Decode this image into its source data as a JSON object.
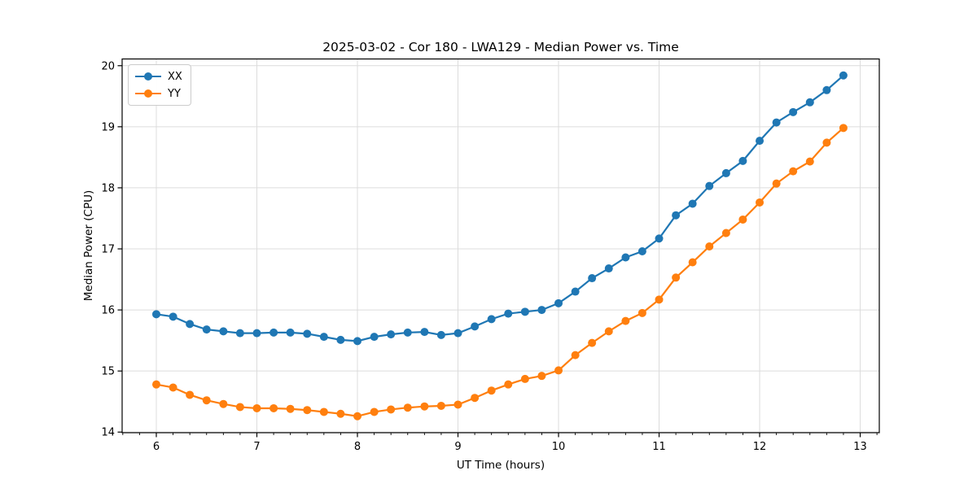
{
  "figure": {
    "title": "2025-03-02 - Cor 180 - LWA129 - Median Power vs. Time"
  },
  "chart_data": {
    "type": "line",
    "title": "2025-03-02 - Cor 180 - LWA129 - Median Power vs. Time",
    "xlabel": "UT Time (hours)",
    "ylabel": "Median Power (CPU)",
    "xlim": [
      5.66,
      13.19
    ],
    "ylim": [
      13.99,
      20.11
    ],
    "xticks": [
      6,
      7,
      8,
      9,
      10,
      11,
      12,
      13
    ],
    "yticks": [
      14,
      15,
      16,
      17,
      18,
      19,
      20
    ],
    "x_minor_subdivisions": 6,
    "grid": true,
    "grid_color": "#dcdcdc",
    "legend_position": "upper-left",
    "x": [
      6.0,
      6.167,
      6.333,
      6.5,
      6.667,
      6.833,
      7.0,
      7.167,
      7.333,
      7.5,
      7.667,
      7.833,
      8.0,
      8.167,
      8.333,
      8.5,
      8.667,
      8.833,
      9.0,
      9.167,
      9.333,
      9.5,
      9.667,
      9.833,
      10.0,
      10.167,
      10.333,
      10.5,
      10.667,
      10.833,
      11.0,
      11.167,
      11.333,
      11.5,
      11.667,
      11.833,
      12.0,
      12.167,
      12.333,
      12.5,
      12.667,
      12.833
    ],
    "series": [
      {
        "name": "XX",
        "color": "#1f77b4",
        "marker": "circle",
        "values": [
          15.93,
          15.89,
          15.77,
          15.68,
          15.65,
          15.62,
          15.62,
          15.63,
          15.63,
          15.61,
          15.56,
          15.51,
          15.49,
          15.56,
          15.6,
          15.63,
          15.64,
          15.59,
          15.62,
          15.73,
          15.85,
          15.94,
          15.97,
          16.0,
          16.11,
          16.3,
          16.52,
          16.68,
          16.86,
          16.96,
          17.17,
          17.55,
          17.74,
          18.03,
          18.24,
          18.44,
          18.77,
          19.07,
          19.24,
          19.4,
          19.6,
          19.84
        ]
      },
      {
        "name": "YY",
        "color": "#ff7f0e",
        "marker": "circle",
        "values": [
          14.78,
          14.73,
          14.61,
          14.52,
          14.46,
          14.41,
          14.39,
          14.39,
          14.38,
          14.36,
          14.33,
          14.3,
          14.26,
          14.33,
          14.37,
          14.4,
          14.42,
          14.43,
          14.45,
          14.56,
          14.68,
          14.78,
          14.87,
          14.92,
          15.01,
          15.26,
          15.46,
          15.65,
          15.82,
          15.95,
          16.17,
          16.53,
          16.78,
          17.04,
          17.26,
          17.48,
          17.76,
          18.07,
          18.27,
          18.43,
          18.74,
          18.98
        ]
      }
    ]
  }
}
